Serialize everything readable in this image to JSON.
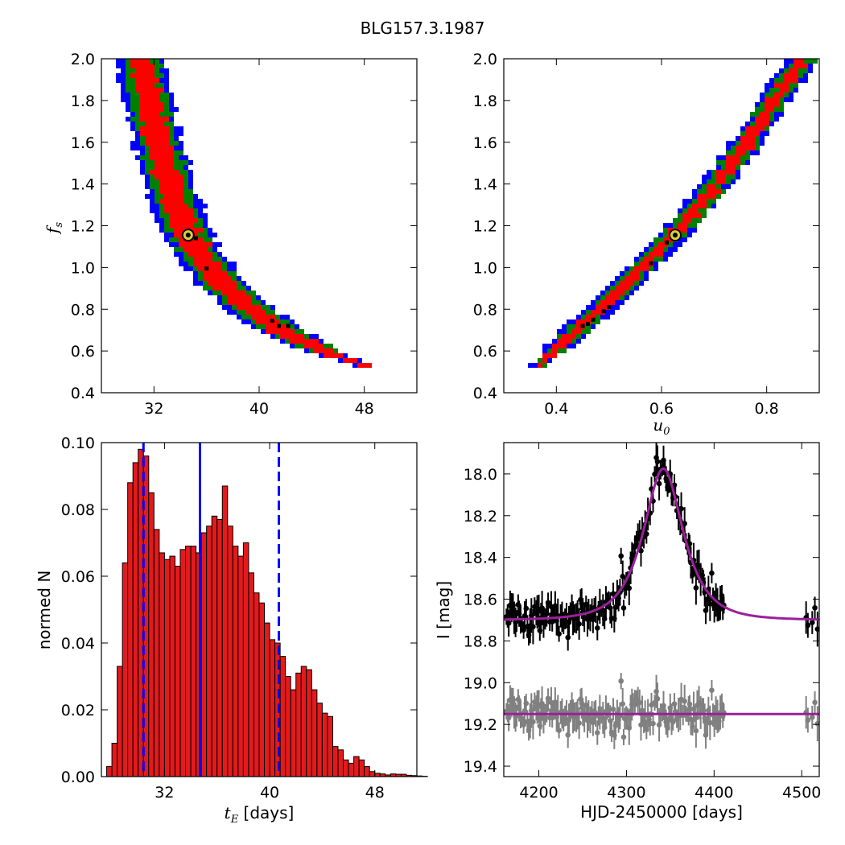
{
  "figure": {
    "title": "BLG157.3.1987"
  },
  "chart_data": [
    {
      "id": "p1",
      "type": "heatmap",
      "title": "",
      "xlabel": "",
      "ylabel": "f",
      "ylabel_sub": "s",
      "xlim": [
        28,
        52
      ],
      "ylim": [
        0.4,
        2.0
      ],
      "xticks": [
        32,
        40,
        48
      ],
      "yticks": [
        0.4,
        0.6,
        0.8,
        1.0,
        1.2,
        1.4,
        1.6,
        1.8,
        2.0
      ],
      "band_centerline": [
        [
          31.0,
          2.0
        ],
        [
          31.6,
          1.8
        ],
        [
          32.3,
          1.6
        ],
        [
          33.2,
          1.4
        ],
        [
          34.3,
          1.2
        ],
        [
          35.6,
          1.05
        ],
        [
          37.2,
          0.92
        ],
        [
          39.3,
          0.8
        ],
        [
          41.6,
          0.7
        ],
        [
          43.8,
          0.63
        ],
        [
          46.0,
          0.57
        ],
        [
          48.5,
          0.52
        ]
      ],
      "levels": [
        {
          "color": "#0000ff",
          "halfwidth_x": 1.9
        },
        {
          "color": "#008000",
          "halfwidth_x": 1.45
        },
        {
          "color": "#ff0000",
          "halfwidth_x": 0.95
        }
      ],
      "best_fit": [
        34.6,
        1.155
      ],
      "black_points": [
        [
          34.8,
          1.14
        ],
        [
          35.2,
          1.14
        ],
        [
          36.0,
          0.995
        ],
        [
          41.5,
          0.72
        ],
        [
          42.2,
          0.72
        ],
        [
          41.0,
          0.745
        ]
      ]
    },
    {
      "id": "p2",
      "type": "heatmap",
      "title": "",
      "xlabel": "u",
      "xlabel_sub": "0",
      "ylabel": "",
      "xlim": [
        0.3,
        0.9
      ],
      "ylim": [
        0.4,
        2.0
      ],
      "xticks": [
        0.4,
        0.6,
        0.8
      ],
      "yticks": [
        0.4,
        0.6,
        0.8,
        1.0,
        1.2,
        1.4,
        1.6,
        1.8,
        2.0
      ],
      "band_centerline": [
        [
          0.36,
          0.51
        ],
        [
          0.42,
          0.66
        ],
        [
          0.48,
          0.79
        ],
        [
          0.54,
          0.94
        ],
        [
          0.6,
          1.09
        ],
        [
          0.66,
          1.26
        ],
        [
          0.72,
          1.45
        ],
        [
          0.78,
          1.66
        ],
        [
          0.83,
          1.86
        ],
        [
          0.87,
          2.0
        ]
      ],
      "levels": [
        {
          "color": "#0000ff",
          "halfwidth_x": 0.03
        },
        {
          "color": "#008000",
          "halfwidth_x": 0.022
        },
        {
          "color": "#ff0000",
          "halfwidth_x": 0.012
        }
      ],
      "best_fit": [
        0.626,
        1.155
      ],
      "black_points": [
        [
          0.45,
          0.72
        ],
        [
          0.46,
          0.73
        ],
        [
          0.47,
          0.75
        ],
        [
          0.49,
          0.79
        ],
        [
          0.5,
          0.81
        ],
        [
          0.58,
          1.02
        ],
        [
          0.61,
          1.12
        ]
      ]
    },
    {
      "id": "p3",
      "type": "bar",
      "title": "",
      "xlabel": "t",
      "xlabel_sub": "E",
      "xlabel_unit": "[days]",
      "ylabel": "normed N",
      "xlim": [
        27.2,
        51.2
      ],
      "ylim": [
        0.0,
        0.1
      ],
      "xticks": [
        32,
        40,
        48
      ],
      "yticks": [
        0.0,
        0.02,
        0.04,
        0.06,
        0.08,
        0.1
      ],
      "bin_start": 27.6,
      "bin_width": 0.4,
      "values": [
        0.003,
        0.01,
        0.033,
        0.064,
        0.088,
        0.094,
        0.098,
        0.096,
        0.085,
        0.074,
        0.067,
        0.065,
        0.066,
        0.063,
        0.068,
        0.069,
        0.069,
        0.067,
        0.073,
        0.075,
        0.078,
        0.077,
        0.087,
        0.075,
        0.069,
        0.066,
        0.07,
        0.061,
        0.055,
        0.052,
        0.046,
        0.041,
        0.04,
        0.036,
        0.03,
        0.026,
        0.031,
        0.033,
        0.032,
        0.026,
        0.022,
        0.019,
        0.018,
        0.009,
        0.008,
        0.005,
        0.004,
        0.006,
        0.005,
        0.003,
        0.0015,
        0.001,
        0.0008,
        0.0005,
        0.0008,
        0.0007,
        0.0007,
        0.0004,
        0.0003,
        0.0002,
        0.0001
      ],
      "bar_color": "#e31a1c",
      "median": 34.7,
      "interval": [
        30.4,
        40.7
      ]
    },
    {
      "id": "p4",
      "type": "scatter",
      "title": "",
      "xlabel": "HJD-2450000 [days]",
      "ylabel": "I [mag]",
      "xlim": [
        4160,
        4520
      ],
      "ylim": [
        19.45,
        17.85
      ],
      "xticks": [
        4200,
        4300,
        4400,
        4500
      ],
      "yticks": [
        18.0,
        18.2,
        18.4,
        18.6,
        18.8,
        19.0,
        19.2,
        19.4
      ],
      "model": {
        "t0": 4342,
        "tE": 34.6,
        "u0": 0.626,
        "baseline": 18.7
      },
      "residual_offset": 19.15,
      "series": [
        {
          "name": "",
          "color": "#000000"
        },
        {
          "name": "",
          "color": "#808080"
        }
      ],
      "model_color": "#9b1f9b"
    }
  ]
}
